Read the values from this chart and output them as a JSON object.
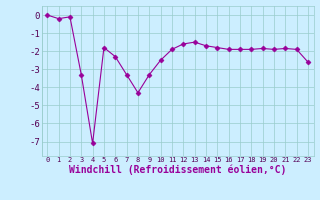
{
  "x": [
    0,
    1,
    2,
    3,
    4,
    5,
    6,
    7,
    8,
    9,
    10,
    11,
    12,
    13,
    14,
    15,
    16,
    17,
    18,
    19,
    20,
    21,
    22,
    23
  ],
  "y": [
    0.0,
    -0.2,
    -0.1,
    -3.3,
    -7.1,
    -1.8,
    -2.3,
    -3.3,
    -4.3,
    -3.3,
    -2.5,
    -1.9,
    -1.6,
    -1.5,
    -1.7,
    -1.8,
    -1.9,
    -1.9,
    -1.9,
    -1.85,
    -1.9,
    -1.85,
    -1.9,
    -2.6
  ],
  "line_color": "#990099",
  "marker": "D",
  "marker_size": 2.5,
  "bg_color": "#cceeff",
  "grid_color": "#99cccc",
  "xlabel": "Windchill (Refroidissement éolien,°C)",
  "xlabel_fontsize": 7,
  "ylabel_ticks": [
    0,
    -1,
    -2,
    -3,
    -4,
    -5,
    -6,
    -7
  ],
  "xlim": [
    -0.5,
    23.5
  ],
  "ylim": [
    -7.8,
    0.5
  ],
  "xtick_labels": [
    "0",
    "1",
    "2",
    "3",
    "4",
    "5",
    "6",
    "7",
    "8",
    "9",
    "1011",
    "1213",
    "1415",
    "1617",
    "1819",
    "2021",
    "2223"
  ],
  "title": ""
}
